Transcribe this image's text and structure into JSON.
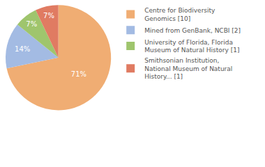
{
  "chart_data": {
    "type": "pie",
    "categories": [
      "Centre for Biodiversity Genomics [10]",
      "Mined from GenBank, NCBI [2]",
      "University of Florida, Florida Museum of Natural History [1]",
      "Smithsonian Institution, National Museum of Natural History... [1]"
    ],
    "values": [
      71,
      14,
      7,
      7
    ],
    "value_labels": [
      "71%",
      "14%",
      "7%",
      "7%"
    ],
    "data_labels": true,
    "colors": [
      "#f0ad73",
      "#a3bbe3",
      "#9fc56d",
      "#e07b62"
    ],
    "legend": "right"
  }
}
